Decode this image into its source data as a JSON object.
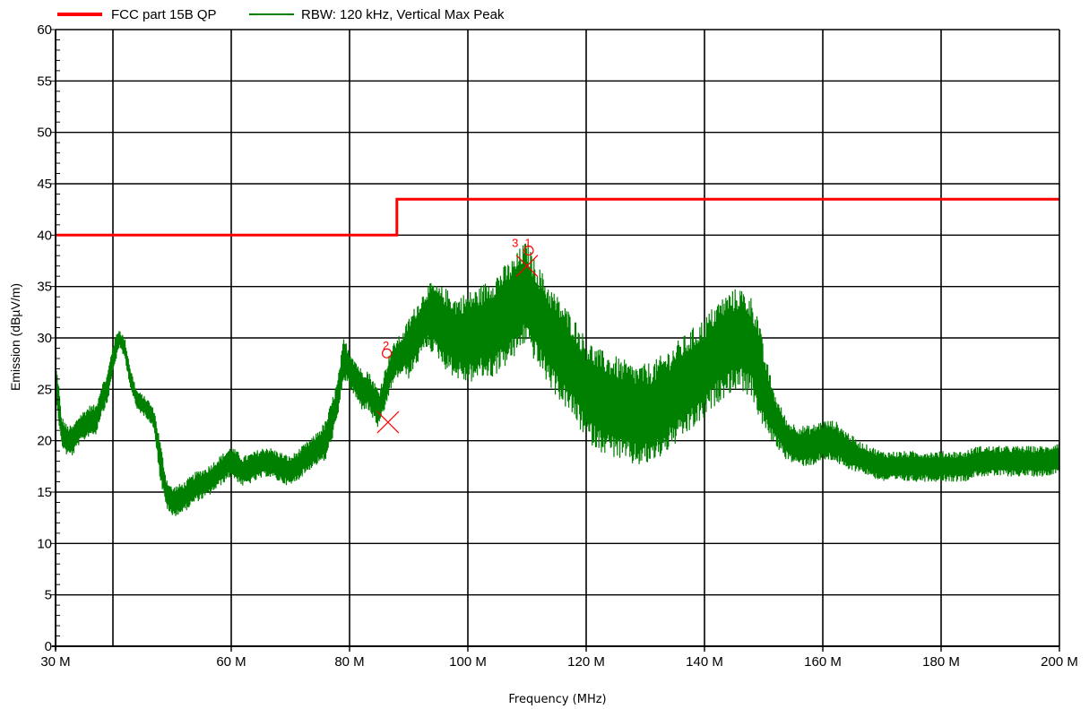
{
  "chart_data": {
    "type": "line",
    "xlabel": "Frequency (MHz)",
    "ylabel": "Emission (dBµV/m)",
    "xlim": [
      30,
      200
    ],
    "ylim": [
      0,
      60
    ],
    "x_ticks": [
      {
        "value": 30,
        "label": "30 M"
      },
      {
        "value": 60,
        "label": "60 M"
      },
      {
        "value": 80,
        "label": "80 M"
      },
      {
        "value": 100,
        "label": "100 M"
      },
      {
        "value": 120,
        "label": "120 M"
      },
      {
        "value": 140,
        "label": "140 M"
      },
      {
        "value": 160,
        "label": "160 M"
      },
      {
        "value": 180,
        "label": "180 M"
      },
      {
        "value": 200,
        "label": "200 M"
      }
    ],
    "x_grid": [
      40,
      60,
      80,
      100,
      120,
      140,
      160,
      180
    ],
    "y_ticks": [
      0,
      5,
      10,
      15,
      20,
      25,
      30,
      35,
      40,
      45,
      50,
      55,
      60
    ],
    "grid": true,
    "legend_position": "top-left",
    "series": [
      {
        "name": "FCC part 15B QP",
        "color": "#ff0000",
        "style": "step",
        "x": [
          30,
          88,
          88,
          200
        ],
        "y": [
          40,
          40,
          43.5,
          43.5
        ]
      },
      {
        "name": "RBW: 120 kHz, Vertical Max Peak",
        "color": "#008000",
        "style": "noisy",
        "x": [
          30,
          30.5,
          31,
          32,
          33,
          34,
          35,
          36,
          37,
          38,
          39,
          40,
          41,
          42,
          43,
          44,
          45,
          46,
          47,
          48,
          49,
          50,
          52,
          54,
          56,
          58,
          60,
          62,
          64,
          66,
          68,
          70,
          72,
          74,
          76,
          78,
          79,
          80,
          81,
          82,
          83,
          84,
          85,
          86,
          87,
          88,
          89,
          90,
          91,
          92,
          93,
          94,
          95,
          96,
          98,
          100,
          102,
          104,
          106,
          107,
          108,
          109,
          110,
          111,
          112,
          113,
          114,
          116,
          118,
          120,
          122,
          124,
          126,
          128,
          130,
          132,
          134,
          136,
          138,
          140,
          142,
          144,
          146,
          147,
          148,
          149,
          150,
          152,
          154,
          156,
          158,
          160,
          162,
          164,
          166,
          168,
          170,
          172,
          174,
          176,
          178,
          180,
          182,
          184,
          186,
          188,
          190,
          192,
          194,
          196,
          198,
          200
        ],
        "y": [
          26,
          24,
          21,
          20,
          20,
          21,
          21.5,
          22,
          22,
          24,
          25,
          28,
          30,
          29,
          26,
          24,
          23.5,
          23,
          22,
          18,
          15,
          14,
          14.5,
          15.5,
          16,
          17,
          18,
          17,
          17.5,
          18,
          17.5,
          17,
          18,
          19,
          20,
          24,
          28,
          27,
          26,
          25,
          25,
          24,
          23,
          25,
          27,
          28,
          28.5,
          29,
          30,
          31,
          32,
          32,
          31.5,
          31,
          30,
          30,
          30.5,
          31,
          32,
          32.5,
          33,
          34,
          34.5,
          33,
          32,
          31,
          30,
          28.5,
          27,
          25,
          24,
          23.5,
          23,
          22.5,
          22.5,
          23,
          24,
          25,
          26,
          27,
          28.5,
          29.5,
          30,
          29.5,
          29,
          27.5,
          25,
          22,
          20,
          19.5,
          19.5,
          20,
          20,
          19,
          18.5,
          18,
          17.5,
          17.5,
          17.5,
          17.5,
          17.5,
          17.5,
          17.5,
          17.5,
          18,
          18,
          18,
          18,
          18,
          18,
          18,
          18.5
        ],
        "spread": [
          1.5,
          2,
          1.5,
          1.5,
          1.5,
          1.5,
          1.5,
          1.5,
          1.5,
          1.5,
          1.5,
          1.5,
          1,
          1,
          1,
          1,
          1,
          1,
          1,
          2,
          1.5,
          1.5,
          1.5,
          1.5,
          1.5,
          1.5,
          1.5,
          1.5,
          1.5,
          1.5,
          1.5,
          1.5,
          1.5,
          1.5,
          2,
          2,
          2,
          2,
          2,
          2,
          2,
          2,
          2,
          2,
          2,
          2,
          2,
          3,
          3,
          3,
          3,
          3.5,
          3.5,
          4,
          4,
          4.5,
          4.5,
          5,
          5,
          5,
          5,
          5,
          5,
          5,
          5,
          5,
          5,
          5,
          5,
          5,
          5,
          5,
          5,
          5,
          5,
          5,
          5,
          5,
          5,
          5,
          5,
          5,
          5,
          5,
          5,
          5,
          4,
          2.5,
          2,
          2,
          2,
          2,
          2,
          2,
          1.5,
          1.5,
          1.5,
          1.5,
          1.5,
          1.5,
          1.5,
          1.5,
          1.5,
          1.5,
          1.5,
          1.5,
          1.5,
          1.5,
          1.5,
          1.5,
          1.5,
          1.5
        ]
      }
    ],
    "markers": [
      {
        "label": "1",
        "x": 110.3,
        "y": 38.5,
        "symbol": "circle",
        "color": "#ff0000"
      },
      {
        "label": "3",
        "x": 109.5,
        "y": 38.5,
        "symbol": "label",
        "color": "#ff0000"
      },
      {
        "label": "",
        "x": 110,
        "y": 37,
        "symbol": "cross",
        "color": "#ff0000"
      },
      {
        "label": "2",
        "x": 86.3,
        "y": 28.5,
        "symbol": "circle",
        "color": "#ff0000"
      },
      {
        "label": "",
        "x": 86.5,
        "y": 21.8,
        "symbol": "cross",
        "color": "#ff0000"
      }
    ]
  }
}
